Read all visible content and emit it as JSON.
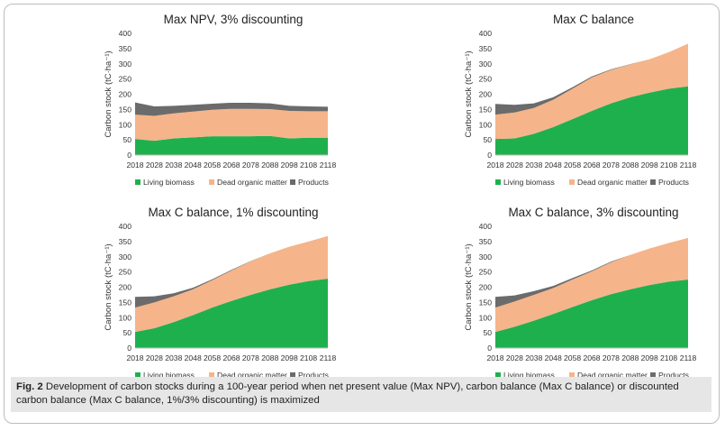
{
  "colors": {
    "living": "#1fb04e",
    "dead": "#f5b48a",
    "products": "#6b6b6b",
    "axis": "#bfbfbf"
  },
  "legend": {
    "living": "Living biomass",
    "dead": "Dead organic matter",
    "products": "Products"
  },
  "chart_data": [
    {
      "type": "area",
      "title": "Max NPV, 3% discounting",
      "ylabel": "Carbon stock (tC·ha⁻¹)",
      "ylim": [
        0,
        400
      ],
      "yticks": [
        0,
        50,
        100,
        150,
        200,
        250,
        300,
        350,
        400
      ],
      "categories": [
        "2018",
        "2028",
        "2038",
        "2048",
        "2058",
        "2068",
        "2078",
        "2088",
        "2098",
        "2108",
        "2118"
      ],
      "stacked": true,
      "series": [
        {
          "name": "Living biomass",
          "values": [
            53,
            47,
            55,
            58,
            62,
            62,
            62,
            63,
            55,
            57,
            57
          ]
        },
        {
          "name": "Dead organic matter",
          "values": [
            80,
            82,
            82,
            85,
            87,
            90,
            90,
            88,
            90,
            87,
            87
          ]
        },
        {
          "name": "Products",
          "values": [
            40,
            31,
            25,
            22,
            20,
            20,
            20,
            19,
            17,
            16,
            15
          ]
        }
      ]
    },
    {
      "type": "area",
      "title": "Max C balance",
      "ylabel": "Carbon stock (tC·ha⁻¹)",
      "ylim": [
        0,
        400
      ],
      "yticks": [
        0,
        50,
        100,
        150,
        200,
        250,
        300,
        350,
        400
      ],
      "categories": [
        "2018",
        "2028",
        "2038",
        "2048",
        "2058",
        "2068",
        "2078",
        "2088",
        "2098",
        "2108",
        "2118"
      ],
      "stacked": true,
      "series": [
        {
          "name": "Living biomass",
          "values": [
            53,
            55,
            70,
            92,
            118,
            145,
            170,
            190,
            205,
            218,
            226
          ]
        },
        {
          "name": "Dead organic matter",
          "values": [
            80,
            85,
            85,
            90,
            100,
            110,
            110,
            108,
            110,
            120,
            140
          ]
        },
        {
          "name": "Products",
          "values": [
            35,
            25,
            15,
            8,
            5,
            3,
            2,
            1,
            0,
            0,
            0
          ]
        }
      ]
    },
    {
      "type": "area",
      "title": "Max C balance, 1% discounting",
      "ylabel": "Carbon stock (tC·ha⁻¹)",
      "ylim": [
        0,
        400
      ],
      "yticks": [
        0,
        50,
        100,
        150,
        200,
        250,
        300,
        350,
        400
      ],
      "categories": [
        "2018",
        "2028",
        "2038",
        "2048",
        "2058",
        "2068",
        "2078",
        "2088",
        "2098",
        "2108",
        "2118"
      ],
      "stacked": true,
      "series": [
        {
          "name": "Living biomass",
          "values": [
            53,
            65,
            85,
            108,
            133,
            155,
            175,
            193,
            208,
            220,
            228
          ]
        },
        {
          "name": "Dead organic matter",
          "values": [
            80,
            85,
            85,
            85,
            90,
            100,
            110,
            118,
            125,
            130,
            140
          ]
        },
        {
          "name": "Products",
          "values": [
            35,
            20,
            10,
            5,
            3,
            2,
            1,
            0,
            0,
            0,
            0
          ]
        }
      ]
    },
    {
      "type": "area",
      "title": "Max C balance, 3% discounting",
      "ylabel": "Carbon stock (tC·ha⁻¹)",
      "ylim": [
        0,
        400
      ],
      "yticks": [
        0,
        50,
        100,
        150,
        200,
        250,
        300,
        350,
        400
      ],
      "categories": [
        "2018",
        "2028",
        "2038",
        "2048",
        "2058",
        "2068",
        "2078",
        "2088",
        "2098",
        "2108",
        "2118"
      ],
      "stacked": true,
      "series": [
        {
          "name": "Living biomass",
          "values": [
            53,
            70,
            90,
            112,
            135,
            157,
            177,
            193,
            207,
            218,
            225
          ]
        },
        {
          "name": "Dead organic matter",
          "values": [
            80,
            83,
            85,
            85,
            90,
            95,
            105,
            113,
            120,
            127,
            137
          ]
        },
        {
          "name": "Products",
          "values": [
            35,
            20,
            12,
            7,
            5,
            3,
            2,
            0,
            0,
            0,
            0
          ]
        }
      ]
    }
  ],
  "caption": {
    "label": "Fig. 2",
    "text": " Development of carbon stocks during a 100-year period when net present value (Max NPV), carbon balance (Max C balance) or discounted carbon balance (Max C balance, 1%/3% discounting) is maximized"
  }
}
